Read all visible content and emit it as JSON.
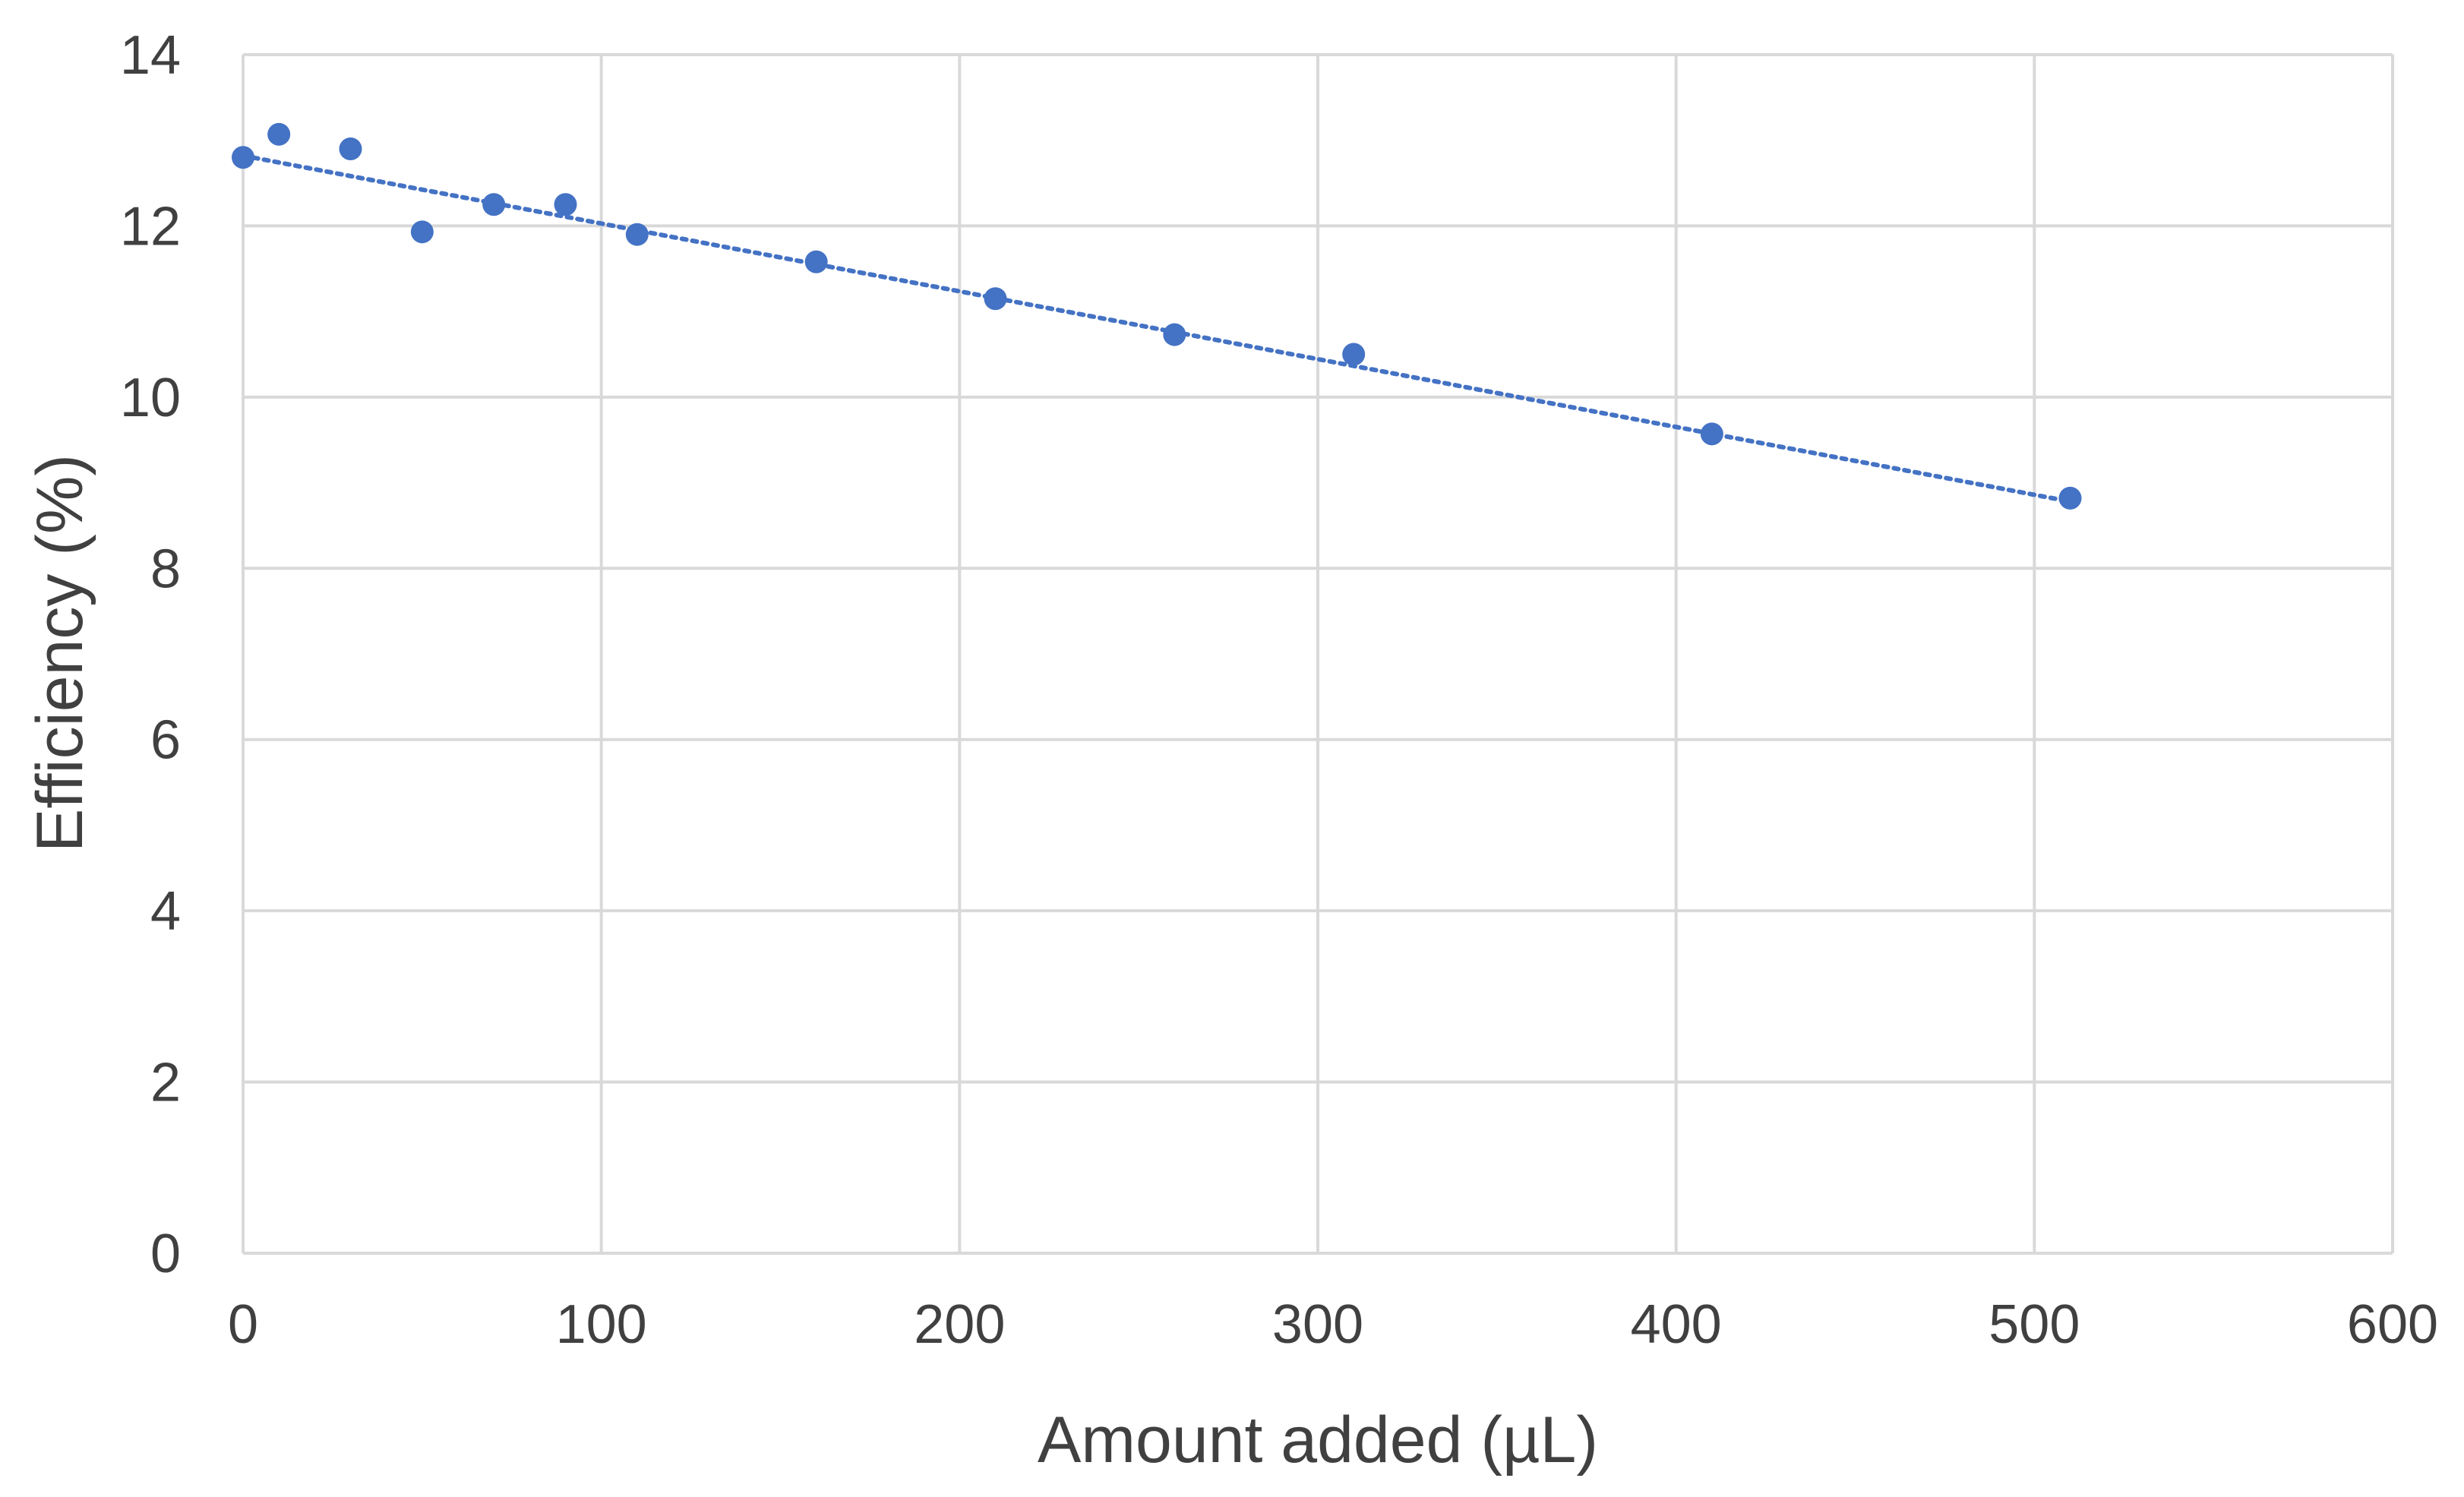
{
  "chart_data": {
    "type": "scatter",
    "title": "",
    "xlabel": "Amount added (µL)",
    "ylabel": "Efficiency (%)",
    "xlim": [
      0,
      600
    ],
    "ylim": [
      0,
      14
    ],
    "x_ticks": [
      0,
      100,
      200,
      300,
      400,
      500,
      600
    ],
    "y_ticks": [
      0,
      2,
      4,
      6,
      8,
      10,
      12,
      14
    ],
    "x_tick_labels": [
      "0",
      "100",
      "200",
      "300",
      "400",
      "500",
      "600"
    ],
    "y_tick_labels": [
      "0",
      "2",
      "4",
      "6",
      "8",
      "10",
      "12",
      "14"
    ],
    "grid": true,
    "legend": "none",
    "colors": {
      "marker": "#4472C4",
      "trendline": "#4472C4",
      "grid": "#d9d9d9",
      "text": "#404040"
    },
    "series": [
      {
        "x": [
          0,
          10,
          30,
          50,
          70,
          90,
          110,
          160,
          210,
          260,
          310,
          410,
          510
        ],
        "y": [
          12.8,
          13.07,
          12.9,
          11.93,
          12.25,
          12.25,
          11.9,
          11.58,
          11.15,
          10.73,
          10.5,
          9.57,
          8.82
        ],
        "trendline": {
          "type": "linear",
          "style": "dotted",
          "x": [
            0,
            510
          ],
          "y": [
            12.82,
            8.78
          ]
        }
      }
    ]
  }
}
